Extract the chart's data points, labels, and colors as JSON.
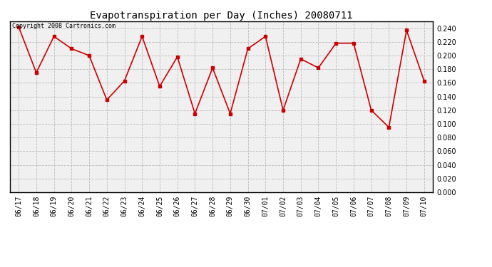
{
  "title": "Evapotranspiration per Day (Inches) 20080711",
  "copyright_text": "Copyright 2008 Cartronics.com",
  "dates": [
    "06/17",
    "06/18",
    "06/19",
    "06/20",
    "06/21",
    "06/22",
    "06/23",
    "06/24",
    "06/25",
    "06/26",
    "06/27",
    "06/28",
    "06/29",
    "06/30",
    "07/01",
    "07/02",
    "07/03",
    "07/04",
    "07/05",
    "07/06",
    "07/07",
    "07/08",
    "07/09",
    "07/10"
  ],
  "values": [
    0.242,
    0.175,
    0.228,
    0.21,
    0.2,
    0.135,
    0.163,
    0.228,
    0.155,
    0.198,
    0.115,
    0.182,
    0.115,
    0.21,
    0.228,
    0.12,
    0.195,
    0.182,
    0.218,
    0.218,
    0.12,
    0.095,
    0.237,
    0.163
  ],
  "line_color": "#cc0000",
  "marker": "s",
  "marker_size": 2.5,
  "background_color": "#ffffff",
  "plot_bg_color": "#f0f0f0",
  "grid_color": "#bbbbbb",
  "ylim": [
    0.0,
    0.25
  ],
  "ytick_step": 0.02,
  "title_fontsize": 10,
  "tick_fontsize": 7,
  "copyright_fontsize": 6
}
